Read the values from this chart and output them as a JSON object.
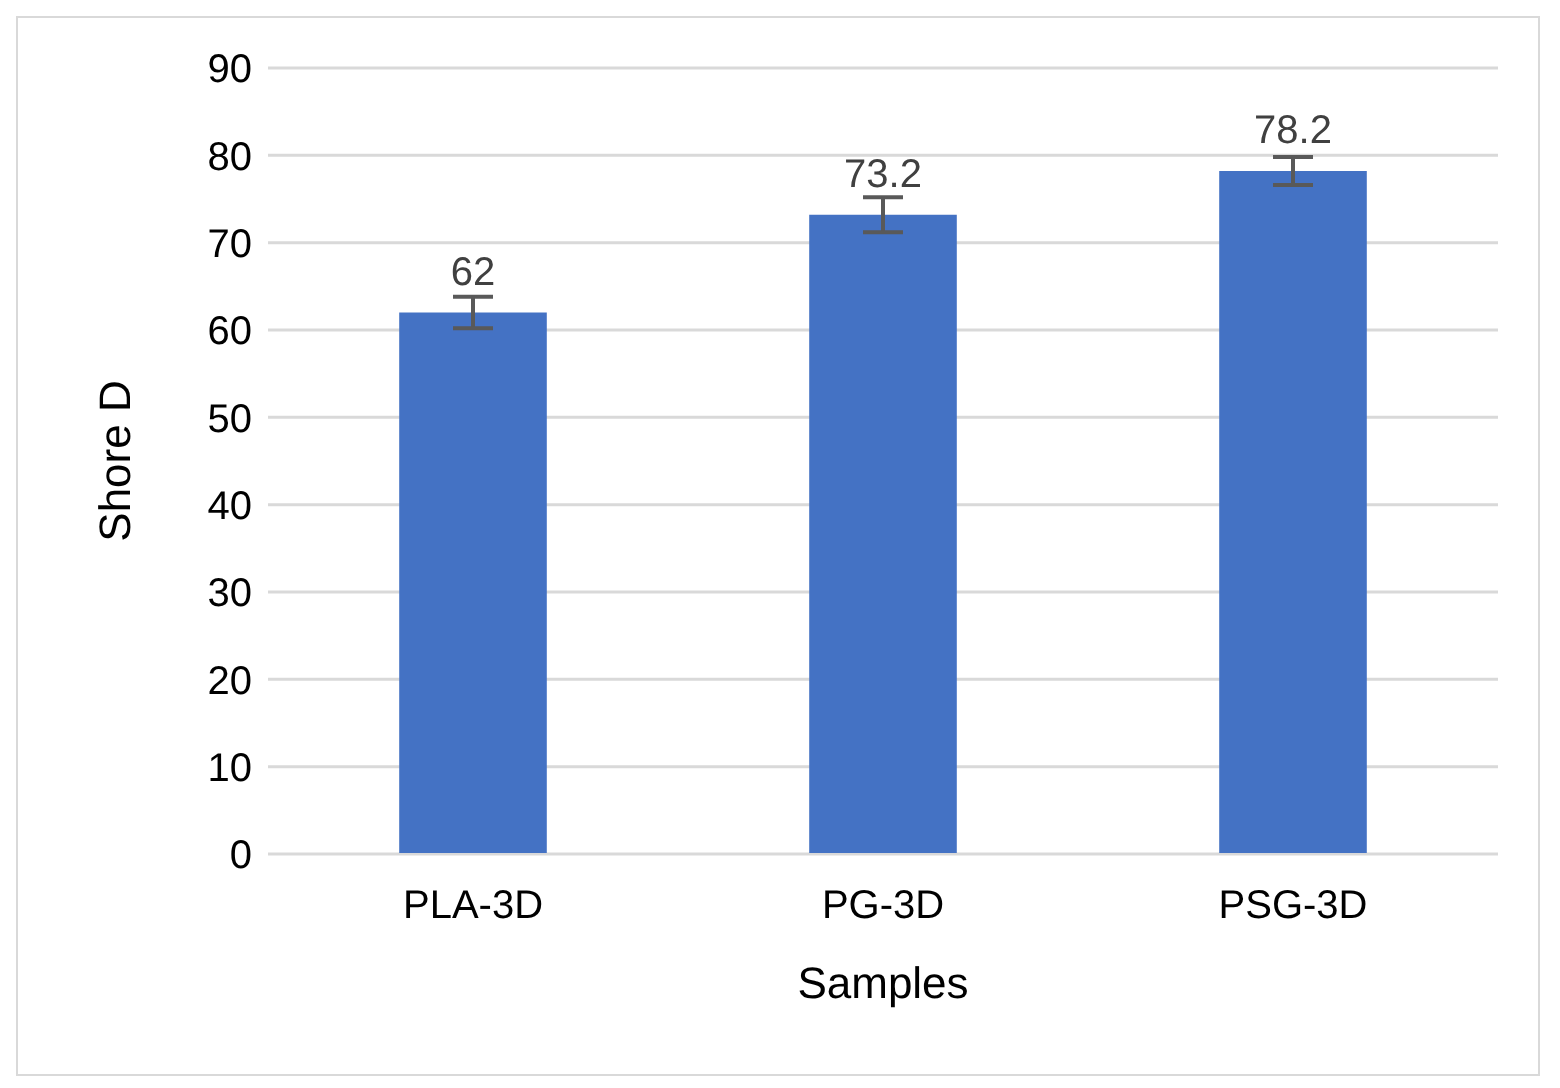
{
  "chart_data": {
    "type": "bar",
    "xlabel": "Samples",
    "ylabel": "Shore D",
    "categories": [
      "PLA-3D",
      "PG-3D",
      "PSG-3D"
    ],
    "values": [
      62,
      73.2,
      78.2
    ],
    "errors": [
      1.8,
      2,
      1.6
    ],
    "color": "#4472c4",
    "ylim": [
      0,
      90
    ],
    "yticks": [
      0,
      10,
      20,
      30,
      40,
      50,
      60,
      70,
      80,
      90
    ],
    "grid": "y",
    "data_labels": true
  }
}
